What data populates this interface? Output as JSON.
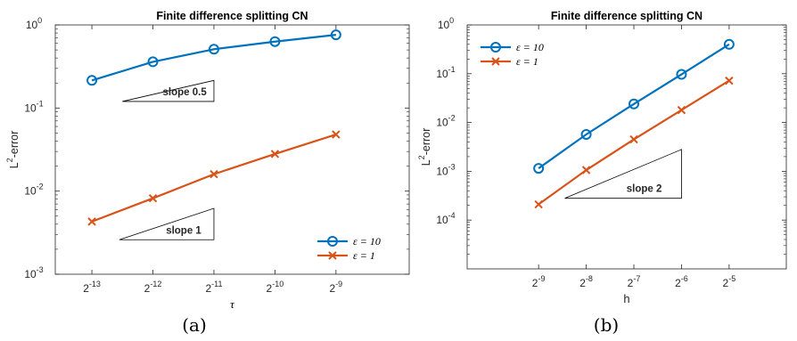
{
  "chart_data": [
    {
      "type": "line",
      "title": "Finite difference splitting CN",
      "xlabel": "τ",
      "ylabel": "L2-error",
      "ylabel_base": "L",
      "ylabel_sup": "2",
      "ylabel_rest": "-error",
      "x_scale": "log2",
      "y_scale": "log10",
      "x_ticks": [
        -13,
        -12,
        -11,
        -10,
        -9
      ],
      "xlim_exp": [
        -13.6,
        -7.8
      ],
      "ylim_exp": [
        -3,
        0
      ],
      "y_ticks": [
        -3,
        -2,
        -1,
        0
      ],
      "x": [
        -13,
        -12,
        -11,
        -10,
        -9
      ],
      "series": [
        {
          "name": "ε = 10",
          "values": [
            0.215,
            0.36,
            0.51,
            0.63,
            0.76
          ],
          "color": "#0072BD",
          "marker": "circle"
        },
        {
          "name": "ε = 1",
          "values": [
            0.0043,
            0.0082,
            0.016,
            0.028,
            0.048
          ],
          "color": "#D95319",
          "marker": "x"
        }
      ],
      "annotations": [
        {
          "label": "slope 0.5",
          "x_exp": [
            -12.5,
            -11.0
          ],
          "y": [
            0.12,
            0.215
          ]
        },
        {
          "label": "slope 1",
          "x_exp": [
            -12.55,
            -11.0
          ],
          "y": [
            0.0026,
            0.0062
          ]
        }
      ],
      "legend_placement": "bottom-right",
      "caption": "(a)"
    },
    {
      "type": "line",
      "title": "Finite difference splitting CN",
      "xlabel": "h",
      "ylabel": "L2-error",
      "ylabel_base": "L",
      "ylabel_sup": "2",
      "ylabel_rest": "-error",
      "x_scale": "log2",
      "y_scale": "log10",
      "x_ticks": [
        -9,
        -8,
        -7,
        -6,
        -5
      ],
      "xlim_exp": [
        -10.5,
        -3.8
      ],
      "ylim_exp": [
        -5,
        0
      ],
      "y_ticks": [
        -4,
        -3,
        -2,
        -1,
        0
      ],
      "x": [
        -9,
        -8,
        -7,
        -6,
        -5
      ],
      "series": [
        {
          "name": "ε = 10",
          "values": [
            0.00115,
            0.0057,
            0.024,
            0.097,
            0.4
          ],
          "color": "#0072BD",
          "marker": "circle"
        },
        {
          "name": "ε = 1",
          "values": [
            0.00021,
            0.00106,
            0.0045,
            0.018,
            0.072
          ],
          "color": "#D95319",
          "marker": "x"
        }
      ],
      "annotations": [
        {
          "label": "slope 2",
          "x_exp": [
            -8.45,
            -6.0
          ],
          "y": [
            0.00028,
            0.0028
          ]
        }
      ],
      "legend_placement": "top-left",
      "caption": "(b)"
    }
  ]
}
